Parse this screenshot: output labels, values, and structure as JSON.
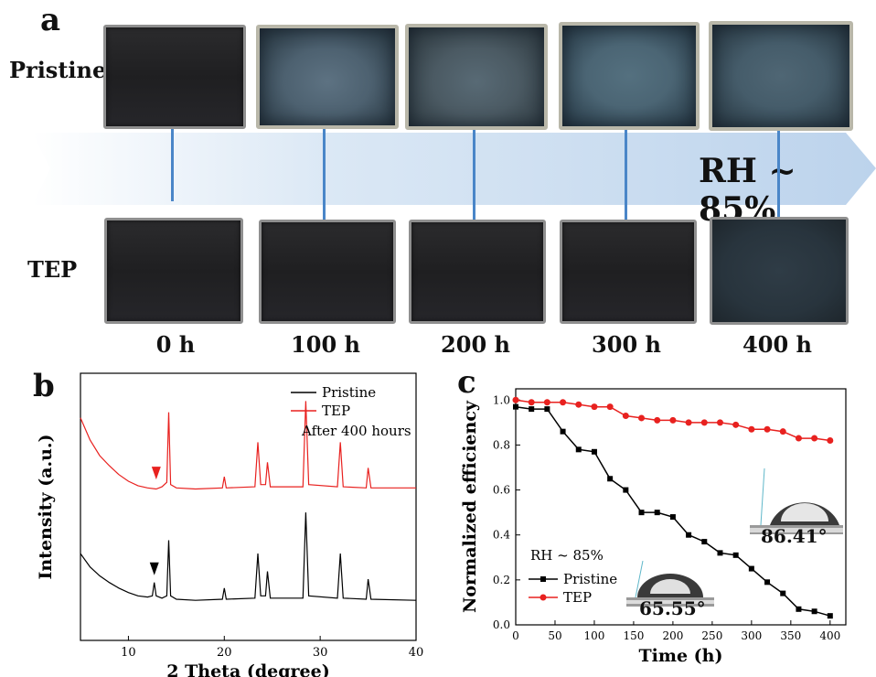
{
  "panel_a": {
    "letter": "a",
    "rows": [
      "Pristine",
      "TEP"
    ],
    "times": [
      "0 h",
      "100 h",
      "200 h",
      "300 h",
      "400 h"
    ],
    "arrow_label": "RH ~ 85%"
  },
  "panel_b": {
    "letter": "b"
  },
  "panel_c": {
    "letter": "c",
    "inset_angles": [
      "86.41°",
      "65.55°"
    ]
  },
  "colors": {
    "pristine": "#000000",
    "tep": "#e8211f",
    "arrow": "#cfe0f2",
    "connector": "#4a86c8"
  },
  "chart_data": [
    {
      "type": "line",
      "xlabel": "2 Theta (degree)",
      "ylabel": "Intensity (a.u.)",
      "xlim": [
        5,
        40
      ],
      "xticks": [
        10,
        20,
        30,
        40
      ],
      "grid": false,
      "legend_position": "top-right",
      "annotation": "After 400 hours",
      "series": [
        {
          "name": "Pristine",
          "color": "#000000",
          "marker_arrow_x": 12.7,
          "points": [
            [
              5,
              0.78
            ],
            [
              6,
              0.66
            ],
            [
              7,
              0.58
            ],
            [
              8,
              0.52
            ],
            [
              9,
              0.47
            ],
            [
              10,
              0.43
            ],
            [
              11,
              0.4
            ],
            [
              12,
              0.39
            ],
            [
              12.5,
              0.4
            ],
            [
              12.7,
              0.52
            ],
            [
              12.9,
              0.4
            ],
            [
              13.5,
              0.38
            ],
            [
              14.0,
              0.4
            ],
            [
              14.2,
              0.9
            ],
            [
              14.4,
              0.4
            ],
            [
              15,
              0.37
            ],
            [
              17,
              0.36
            ],
            [
              19.8,
              0.37
            ],
            [
              20.0,
              0.47
            ],
            [
              20.2,
              0.37
            ],
            [
              23.2,
              0.38
            ],
            [
              23.5,
              0.78
            ],
            [
              23.8,
              0.4
            ],
            [
              24.3,
              0.4
            ],
            [
              24.5,
              0.62
            ],
            [
              24.8,
              0.38
            ],
            [
              28.2,
              0.38
            ],
            [
              28.5,
              1.15
            ],
            [
              28.8,
              0.4
            ],
            [
              31.8,
              0.38
            ],
            [
              32.1,
              0.78
            ],
            [
              32.4,
              0.38
            ],
            [
              34.8,
              0.37
            ],
            [
              35.0,
              0.55
            ],
            [
              35.3,
              0.37
            ],
            [
              40,
              0.36
            ]
          ]
        },
        {
          "name": "TEP",
          "color": "#e8211f",
          "marker_arrow_x": 12.9,
          "points": [
            [
              5,
              2.0
            ],
            [
              6,
              1.8
            ],
            [
              7,
              1.66
            ],
            [
              8,
              1.57
            ],
            [
              9,
              1.49
            ],
            [
              10,
              1.43
            ],
            [
              11,
              1.39
            ],
            [
              12,
              1.37
            ],
            [
              12.9,
              1.36
            ],
            [
              13.5,
              1.38
            ],
            [
              14.0,
              1.42
            ],
            [
              14.2,
              2.05
            ],
            [
              14.4,
              1.4
            ],
            [
              15,
              1.37
            ],
            [
              17,
              1.36
            ],
            [
              19.8,
              1.37
            ],
            [
              20.0,
              1.47
            ],
            [
              20.2,
              1.37
            ],
            [
              23.2,
              1.38
            ],
            [
              23.5,
              1.78
            ],
            [
              23.8,
              1.4
            ],
            [
              24.3,
              1.4
            ],
            [
              24.5,
              1.6
            ],
            [
              24.8,
              1.38
            ],
            [
              28.2,
              1.38
            ],
            [
              28.5,
              2.15
            ],
            [
              28.8,
              1.4
            ],
            [
              31.8,
              1.38
            ],
            [
              32.1,
              1.78
            ],
            [
              32.4,
              1.38
            ],
            [
              34.8,
              1.37
            ],
            [
              35.0,
              1.55
            ],
            [
              35.3,
              1.37
            ],
            [
              40,
              1.37
            ]
          ]
        }
      ]
    },
    {
      "type": "line",
      "xlabel": "Time (h)",
      "ylabel": "Normalized efficiency",
      "xlim": [
        0,
        420
      ],
      "ylim": [
        0,
        1.05
      ],
      "xticks": [
        0,
        50,
        100,
        150,
        200,
        250,
        300,
        350,
        400
      ],
      "yticks": [
        0.0,
        0.2,
        0.4,
        0.6,
        0.8,
        1.0
      ],
      "grid": false,
      "legend_position": "bottom-left",
      "legend_title": "RH ~ 85%",
      "series": [
        {
          "name": "Pristine",
          "color": "#000000",
          "marker": "square",
          "x": [
            0,
            20,
            40,
            60,
            80,
            100,
            120,
            140,
            160,
            180,
            200,
            220,
            240,
            260,
            280,
            300,
            320,
            340,
            360,
            380,
            400
          ],
          "y": [
            0.97,
            0.96,
            0.96,
            0.86,
            0.78,
            0.77,
            0.65,
            0.6,
            0.5,
            0.5,
            0.48,
            0.4,
            0.37,
            0.32,
            0.31,
            0.25,
            0.19,
            0.14,
            0.07,
            0.06,
            0.04
          ]
        },
        {
          "name": "TEP",
          "color": "#e8211f",
          "marker": "circle",
          "x": [
            0,
            20,
            40,
            60,
            80,
            100,
            120,
            140,
            160,
            180,
            200,
            220,
            240,
            260,
            280,
            300,
            320,
            340,
            360,
            380,
            400
          ],
          "y": [
            1.0,
            0.99,
            0.99,
            0.99,
            0.98,
            0.97,
            0.97,
            0.93,
            0.92,
            0.91,
            0.91,
            0.9,
            0.9,
            0.9,
            0.89,
            0.87,
            0.87,
            0.86,
            0.83,
            0.83,
            0.82
          ]
        }
      ]
    }
  ]
}
